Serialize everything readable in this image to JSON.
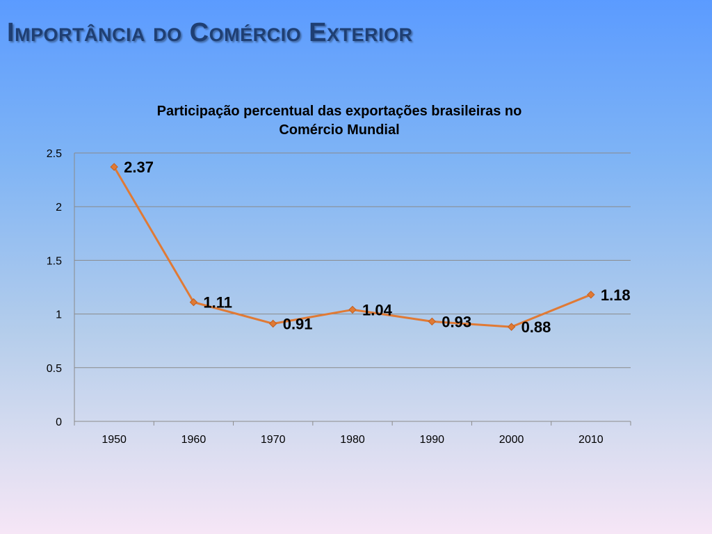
{
  "slide": {
    "title": "Importância do Comércio Exterior"
  },
  "chart_data": {
    "type": "line",
    "title_lines": [
      "Participação percentual das exportações brasileiras no",
      "Comércio Mundial"
    ],
    "categories": [
      "1950",
      "1960",
      "1970",
      "1980",
      "1990",
      "2000",
      "2010"
    ],
    "series": [
      {
        "values": [
          2.37,
          1.11,
          0.91,
          1.04,
          0.93,
          0.88,
          1.18
        ],
        "color": "#e07a35",
        "marker": "diamond"
      }
    ],
    "data_labels": [
      "2.37",
      "1.11",
      "0.91",
      "1.04",
      "0.93",
      "0.88",
      "1.18"
    ],
    "yticks": [
      "0",
      "0.5",
      "1",
      "1.5",
      "2",
      "2.5"
    ],
    "ylim": [
      0,
      2.5
    ],
    "grid": true,
    "xlabel": "",
    "ylabel": ""
  }
}
